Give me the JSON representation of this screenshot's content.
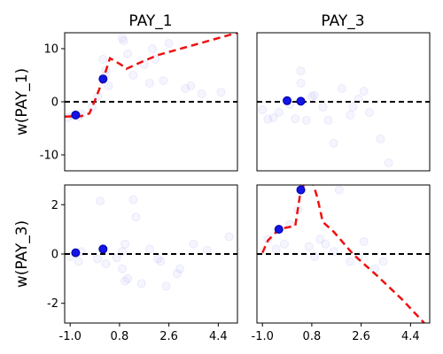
{
  "chart_data": {
    "type": "scatter",
    "columns": [
      "PAY_1",
      "PAY_3"
    ],
    "rows": [
      "w(PAY_1)",
      "w(PAY_3)"
    ],
    "xlim": [
      -1.2,
      5.1
    ],
    "x_ticks": [
      "-1.0",
      "0.8",
      "2.6",
      "4.4"
    ],
    "row_ylims": [
      [
        -13,
        13
      ],
      [
        -2.8,
        2.8
      ]
    ],
    "row_yticks": [
      [
        -10,
        0,
        10
      ],
      [
        -2,
        0,
        2
      ]
    ],
    "grid": false,
    "panels": [
      {
        "row": 0,
        "col": 0,
        "x_ticks_shown": false,
        "y_ticks_shown": true,
        "reference_y": 0,
        "curve": [
          [
            -1.2,
            -2.8
          ],
          [
            -0.6,
            -2.7
          ],
          [
            -0.3,
            -2.2
          ],
          [
            -0.1,
            0.2
          ],
          [
            0.2,
            4.2
          ],
          [
            0.45,
            8.2
          ],
          [
            0.85,
            7.0
          ],
          [
            1.05,
            6.2
          ],
          [
            1.6,
            7.5
          ],
          [
            2.2,
            8.8
          ],
          [
            5.1,
            13.0
          ]
        ],
        "highlight_points": [
          [
            -0.8,
            -2.5
          ],
          [
            0.2,
            4.3
          ]
        ],
        "background_points": [
          [
            -1.1,
            -3.0
          ],
          [
            -0.9,
            -2.6
          ],
          [
            -0.7,
            -2.8
          ],
          [
            -0.6,
            -2.3
          ],
          [
            0.2,
            8.0
          ],
          [
            0.3,
            6.0
          ],
          [
            0.3,
            5.0
          ],
          [
            0.4,
            3.0
          ],
          [
            0.9,
            12.0
          ],
          [
            0.95,
            11.5
          ],
          [
            1.1,
            9.0
          ],
          [
            1.3,
            5.0
          ],
          [
            1.7,
            7.0
          ],
          [
            2.0,
            10.0
          ],
          [
            2.1,
            8.0
          ],
          [
            2.6,
            11.0
          ],
          [
            3.2,
            2.5
          ],
          [
            3.4,
            3.0
          ],
          [
            3.8,
            1.5
          ],
          [
            4.5,
            1.8
          ],
          [
            -0.2,
            -1.0
          ],
          [
            0.0,
            1.0
          ],
          [
            1.9,
            3.5
          ],
          [
            2.4,
            4.0
          ]
        ]
      },
      {
        "row": 0,
        "col": 1,
        "x_ticks_shown": false,
        "y_ticks_shown": false,
        "reference_y": 0,
        "curve": [],
        "highlight_points": [
          [
            -0.1,
            0.2
          ],
          [
            0.4,
            0.1
          ]
        ],
        "background_points": [
          [
            -0.8,
            -3.3
          ],
          [
            -0.6,
            -3.0
          ],
          [
            -0.4,
            -2.0
          ],
          [
            0.0,
            -0.5
          ],
          [
            0.2,
            -3.2
          ],
          [
            0.4,
            5.8
          ],
          [
            0.4,
            3.5
          ],
          [
            0.6,
            -3.5
          ],
          [
            0.9,
            1.2
          ],
          [
            1.2,
            -1.0
          ],
          [
            1.4,
            -3.5
          ],
          [
            1.6,
            -7.8
          ],
          [
            1.9,
            2.5
          ],
          [
            2.3,
            -1.0
          ],
          [
            2.5,
            0.5
          ],
          [
            2.7,
            2.0
          ],
          [
            2.9,
            -2.0
          ],
          [
            3.3,
            -7.0
          ],
          [
            3.6,
            -11.5
          ],
          [
            0.8,
            1.0
          ],
          [
            2.2,
            -2.5
          ],
          [
            -1.0,
            -1.5
          ]
        ]
      },
      {
        "row": 1,
        "col": 0,
        "x_ticks_shown": true,
        "y_ticks_shown": true,
        "reference_y": 0,
        "curve": [],
        "highlight_points": [
          [
            -0.8,
            0.05
          ],
          [
            0.2,
            0.2
          ]
        ],
        "background_points": [
          [
            -1.0,
            -0.1
          ],
          [
            -0.7,
            -0.3
          ],
          [
            -0.6,
            0.1
          ],
          [
            0.1,
            2.15
          ],
          [
            0.0,
            -0.2
          ],
          [
            0.3,
            -0.4
          ],
          [
            0.7,
            -0.15
          ],
          [
            0.9,
            0.1
          ],
          [
            0.9,
            -0.6
          ],
          [
            1.0,
            0.4
          ],
          [
            1.0,
            -1.1
          ],
          [
            1.1,
            -1.0
          ],
          [
            1.4,
            1.5
          ],
          [
            1.6,
            -1.2
          ],
          [
            1.9,
            0.2
          ],
          [
            2.2,
            -0.2
          ],
          [
            2.3,
            -0.3
          ],
          [
            2.5,
            -1.3
          ],
          [
            2.9,
            -0.8
          ],
          [
            3.5,
            0.4
          ],
          [
            4.0,
            0.15
          ],
          [
            4.8,
            0.7
          ],
          [
            3.0,
            -0.6
          ],
          [
            1.3,
            2.2
          ]
        ]
      },
      {
        "row": 1,
        "col": 1,
        "x_ticks_shown": true,
        "y_ticks_shown": false,
        "reference_y": 0,
        "curve": [
          [
            -1.0,
            0.05
          ],
          [
            -0.8,
            0.55
          ],
          [
            -0.4,
            1.0
          ],
          [
            0.2,
            1.15
          ],
          [
            0.4,
            2.6
          ],
          [
            0.75,
            3.2
          ],
          [
            1.0,
            2.3
          ],
          [
            1.2,
            1.3
          ],
          [
            1.6,
            0.9
          ],
          [
            2.3,
            0.0
          ],
          [
            3.2,
            -0.9
          ],
          [
            4.1,
            -1.85
          ],
          [
            4.9,
            -2.8
          ]
        ],
        "highlight_points": [
          [
            -0.4,
            1.0
          ],
          [
            0.4,
            2.6
          ]
        ],
        "background_points": [
          [
            -0.8,
            0.6
          ],
          [
            -0.5,
            0.2
          ],
          [
            0.0,
            1.2
          ],
          [
            0.3,
            1.8
          ],
          [
            0.7,
            0.3
          ],
          [
            0.9,
            -0.1
          ],
          [
            1.1,
            0.6
          ],
          [
            1.3,
            0.4
          ],
          [
            1.6,
            0.1
          ],
          [
            1.8,
            2.6
          ],
          [
            2.2,
            -0.3
          ],
          [
            2.5,
            -0.1
          ],
          [
            2.7,
            0.5
          ],
          [
            3.1,
            -0.6
          ],
          [
            3.4,
            -0.3
          ],
          [
            -0.2,
            0.4
          ]
        ]
      }
    ]
  }
}
